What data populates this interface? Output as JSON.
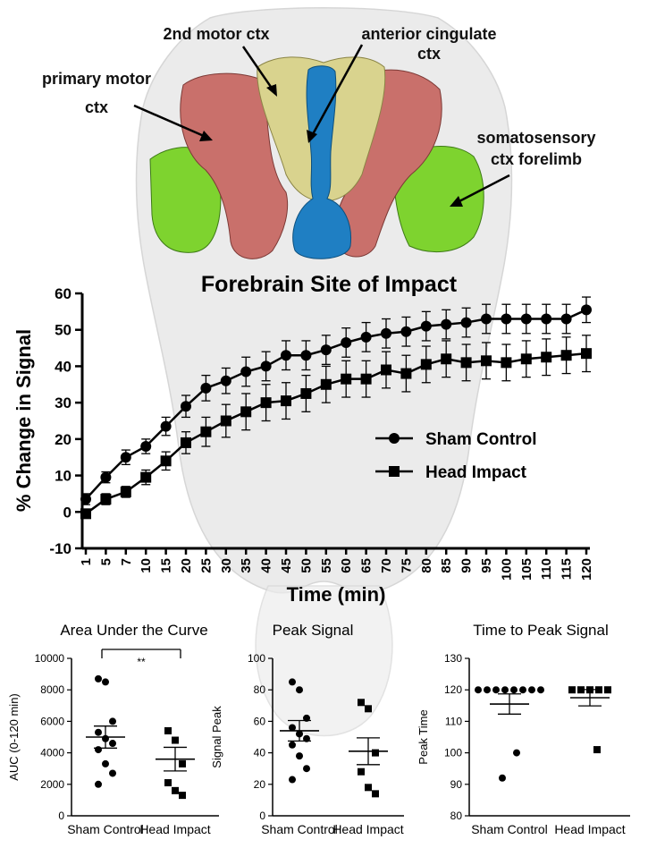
{
  "brain": {
    "labels": {
      "secondary_motor": "2nd motor ctx",
      "anterior_cingulate_1": "anterior cingulate",
      "anterior_cingulate_2": "ctx",
      "primary_motor_1": "primary motor",
      "primary_motor_2": "ctx",
      "somatosensory_1": "somatosensory",
      "somatosensory_2": "ctx forelimb"
    },
    "colors": {
      "primary_motor": "#c9706b",
      "secondary_motor": "#d9d38e",
      "anterior_cingulate": "#1f7fc3",
      "somatosensory": "#7ed32f"
    }
  },
  "chart_data": [
    {
      "type": "line",
      "title": "Forebrain Site of Impact",
      "xlabel": "Time (min)",
      "ylabel": "% Change in Signal",
      "ylim": [
        -10,
        60
      ],
      "yticks": [
        -10,
        0,
        10,
        20,
        30,
        40,
        50,
        60
      ],
      "x": [
        1,
        5,
        7,
        10,
        15,
        20,
        25,
        30,
        35,
        40,
        45,
        50,
        55,
        60,
        65,
        70,
        75,
        80,
        85,
        90,
        95,
        100,
        105,
        110,
        115,
        120
      ],
      "legend_position": "center-right",
      "series": [
        {
          "name": "Sham Control",
          "marker": "circle",
          "values": [
            3.5,
            9.5,
            15,
            18,
            23.5,
            29,
            34,
            36,
            38.5,
            40,
            43,
            43,
            44.5,
            46.5,
            48,
            49,
            49.5,
            51,
            51.5,
            52,
            53,
            53,
            53,
            53,
            53,
            55.5
          ],
          "errors": [
            1.5,
            1.5,
            2,
            2,
            2.5,
            3,
            3.5,
            3.5,
            4,
            4,
            4,
            4,
            4,
            4,
            4,
            4,
            4,
            4,
            4,
            4,
            4,
            4,
            4,
            4,
            4,
            3.5
          ]
        },
        {
          "name": "Head Impact",
          "marker": "square",
          "values": [
            -0.5,
            3.5,
            5.5,
            9.5,
            14,
            19,
            22,
            25,
            27.5,
            30,
            30.5,
            32.5,
            35,
            36.5,
            36.5,
            39,
            38,
            40.5,
            42,
            41,
            41.5,
            41,
            42,
            42.5,
            43,
            43.5
          ],
          "errors": [
            1,
            1.5,
            1.5,
            2,
            2.5,
            3,
            4,
            4.5,
            5,
            5,
            5,
            5,
            5,
            5,
            5,
            5,
            5,
            5,
            5,
            5,
            5,
            5,
            5,
            5,
            5,
            5
          ]
        }
      ]
    },
    {
      "type": "scatter",
      "title": "Area Under the Curve",
      "ylabel": "AUC (0-120 min)",
      "ylim": [
        0,
        10000
      ],
      "yticks": [
        0,
        2000,
        4000,
        6000,
        8000,
        10000
      ],
      "categories": [
        "Sham Control",
        "Head Impact"
      ],
      "significance": "**",
      "groups": [
        {
          "name": "Sham Control",
          "marker": "circle",
          "mean": 5000,
          "sem": 700,
          "points": [
            8700,
            8500,
            6000,
            5300,
            4900,
            4600,
            4200,
            3300,
            2700,
            2000
          ]
        },
        {
          "name": "Head Impact",
          "marker": "square",
          "mean": 3600,
          "sem": 750,
          "points": [
            5400,
            4800,
            3300,
            2100,
            1600,
            1300
          ]
        }
      ]
    },
    {
      "type": "scatter",
      "title": "Peak Signal",
      "ylabel": "Signal Peak",
      "ylim": [
        0,
        100
      ],
      "yticks": [
        0,
        20,
        40,
        60,
        80,
        100
      ],
      "categories": [
        "Sham Control",
        "Head Impact"
      ],
      "groups": [
        {
          "name": "Sham Control",
          "marker": "circle",
          "mean": 54,
          "sem": 6.5,
          "points": [
            85,
            80,
            62,
            56,
            52,
            49,
            45,
            38,
            30,
            23
          ]
        },
        {
          "name": "Head Impact",
          "marker": "square",
          "mean": 41,
          "sem": 8.5,
          "points": [
            72,
            68,
            40,
            28,
            18,
            14
          ]
        }
      ]
    },
    {
      "type": "scatter",
      "title": "Time to Peak Signal",
      "ylabel": "Peak Time",
      "ylim": [
        80,
        130
      ],
      "yticks": [
        80,
        90,
        100,
        110,
        120,
        130
      ],
      "categories": [
        "Sham Control",
        "Head Impact"
      ],
      "groups": [
        {
          "name": "Sham Control",
          "marker": "circle",
          "mean": 115.5,
          "sem": 3.2,
          "points": [
            120,
            120,
            120,
            120,
            120,
            120,
            120,
            120,
            100,
            92
          ]
        },
        {
          "name": "Head Impact",
          "marker": "square",
          "mean": 117.5,
          "sem": 2.6,
          "points": [
            120,
            120,
            120,
            120,
            120,
            101
          ]
        }
      ]
    }
  ]
}
